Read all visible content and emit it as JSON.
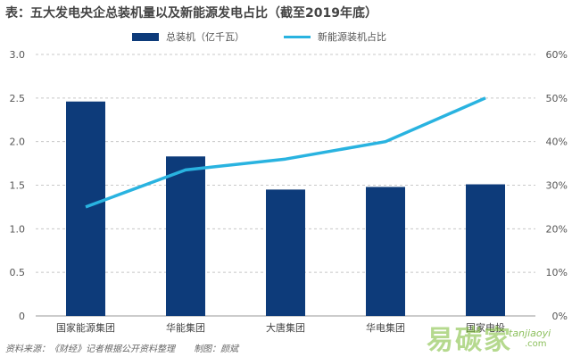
{
  "title": "表：五大发电央企总装机量以及新能源发电占比（截至2019年底）",
  "legend": {
    "bar_label": "总装机（亿千瓦）",
    "line_label": "新能源装机占比"
  },
  "source": {
    "text": "资料来源：《财经》记者根据公开资料整理",
    "credit": "制图：颜斌"
  },
  "watermark": {
    "text": "易碳家",
    "sub": "tanjiaoyi",
    "domain": ".com"
  },
  "colors": {
    "bar": "#0d3b7a",
    "line": "#29b3e0",
    "grid": "#c8c8c8",
    "axis_text": "#555555"
  },
  "chart_data": {
    "type": "bar",
    "title": "表：五大发电央企总装机量以及新能源发电占比（截至2019年底）",
    "categories": [
      "国家能源集团",
      "华能集团",
      "大唐集团",
      "华电集团",
      "国家电投"
    ],
    "series": [
      {
        "name": "总装机（亿千瓦）",
        "type": "bar",
        "axis": "left",
        "values": [
          2.46,
          1.83,
          1.45,
          1.48,
          1.51
        ]
      },
      {
        "name": "新能源装机占比",
        "type": "line",
        "axis": "right",
        "values": [
          25,
          33.5,
          36,
          40,
          50
        ]
      }
    ],
    "ylim_left": [
      0,
      3.0
    ],
    "yticks_left": [
      "0",
      "0.5",
      "1.0",
      "1.5",
      "2.0",
      "2.5",
      "3.0"
    ],
    "ylim_right": [
      0,
      60
    ],
    "yticks_right": [
      "0%",
      "10%",
      "20%",
      "30%",
      "40%",
      "50%",
      "60%"
    ],
    "grid": true,
    "legend_position": "top"
  }
}
